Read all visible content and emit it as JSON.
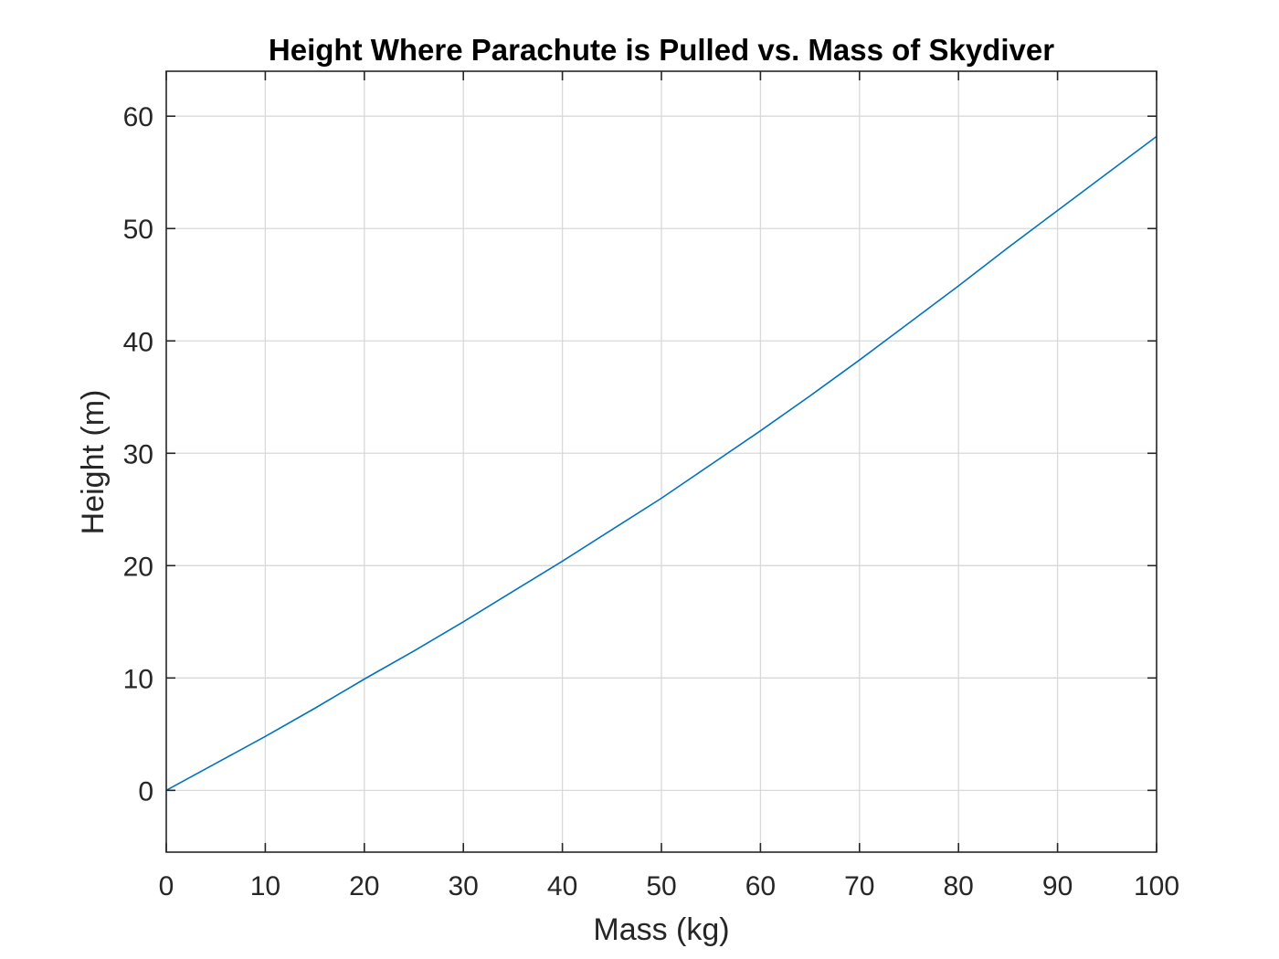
{
  "chart_data": {
    "type": "line",
    "title": "Height Where Parachute is Pulled vs. Mass of Skydiver",
    "xlabel": "Mass (kg)",
    "ylabel": "Height (m)",
    "xlim": [
      0,
      100
    ],
    "ylim": [
      -5.5,
      64
    ],
    "xticks": [
      0,
      10,
      20,
      30,
      40,
      50,
      60,
      70,
      80,
      90,
      100
    ],
    "xtick_labels": [
      "0",
      "10",
      "20",
      "30",
      "40",
      "50",
      "60",
      "70",
      "80",
      "90",
      "100"
    ],
    "yticks": [
      0,
      10,
      20,
      30,
      40,
      50,
      60
    ],
    "ytick_labels": [
      "0",
      "10",
      "20",
      "30",
      "40",
      "50",
      "60"
    ],
    "grid": true,
    "series": [
      {
        "color": "#0072BD",
        "x": [
          0,
          5,
          10,
          15,
          20,
          25,
          30,
          35,
          40,
          45,
          50,
          55,
          60,
          65,
          70,
          75,
          80,
          85,
          90,
          95,
          100
        ],
        "y": [
          0,
          2.4,
          4.8,
          7.3,
          9.9,
          12.4,
          15.0,
          17.7,
          20.4,
          23.2,
          26.0,
          29.0,
          32.0,
          35.1,
          38.3,
          41.6,
          44.9,
          48.3,
          51.6,
          54.9,
          58.2
        ]
      }
    ]
  }
}
